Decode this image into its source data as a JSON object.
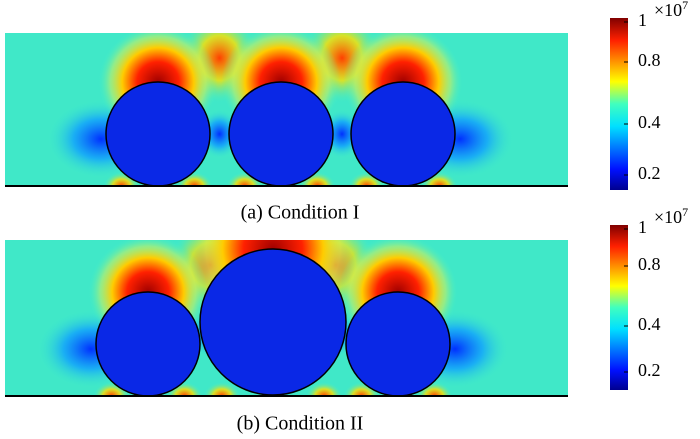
{
  "panels": [
    {
      "caption": "(a) Condition I",
      "colorbar": {
        "ticks": [
          "1",
          "0.8",
          "0.4",
          "0.2"
        ],
        "multiplier": "×10",
        "exponent": "7"
      }
    },
    {
      "caption": "(b) Condition II",
      "colorbar": {
        "ticks": [
          "1",
          "0.8",
          "0.4",
          "0.2"
        ],
        "multiplier": "×10",
        "exponent": "7"
      }
    }
  ]
}
